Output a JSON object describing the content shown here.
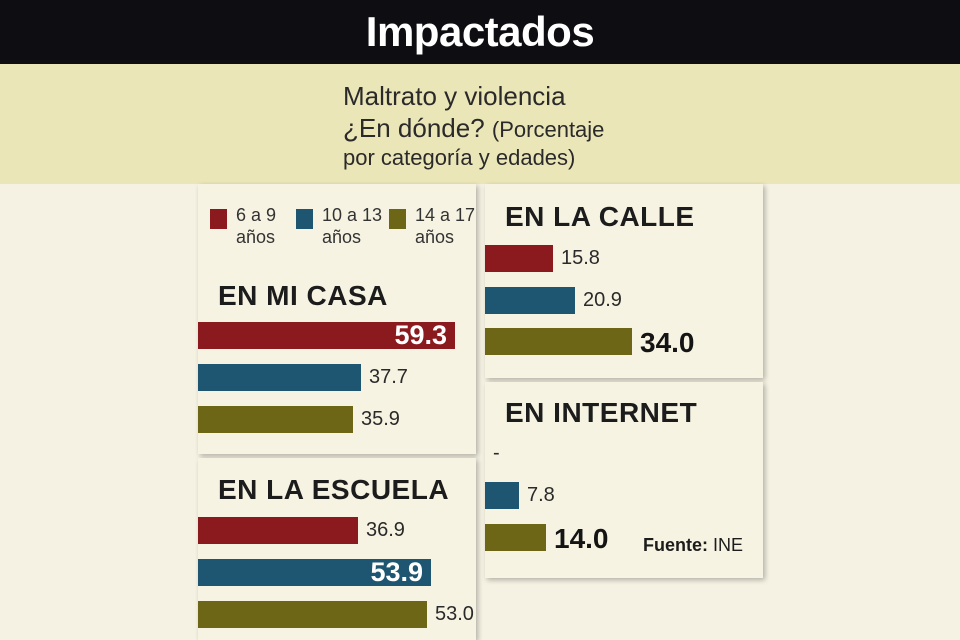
{
  "header": {
    "title": "Impactados"
  },
  "subtitle": {
    "line1": "Maltrato y violencia",
    "line2": "¿En dónde?",
    "line2b": "(Porcentaje",
    "line3": "por categoría y edades)"
  },
  "colors": {
    "age_6_9": "#8b1a1e",
    "age_10_13": "#1e5570",
    "age_14_17": "#6c6616"
  },
  "legend": {
    "items": [
      {
        "line1": "6 a 9",
        "line2": "años"
      },
      {
        "line1": "10 a 13",
        "line2": "años"
      },
      {
        "line1": "14 a 17",
        "line2": "años"
      }
    ]
  },
  "chart_data": {
    "type": "bar",
    "orientation": "horizontal",
    "title": "Impactados",
    "subtitle": "Maltrato y violencia ¿En dónde? (Porcentaje por categoría y edades)",
    "unit": "%",
    "series_names": [
      "6 a 9 años",
      "10 a 13 años",
      "14 a 17 años"
    ],
    "panels": [
      {
        "id": "casa",
        "title": "EN MI CASA",
        "values": [
          59.3,
          37.7,
          35.9
        ],
        "labels": [
          "59.3",
          "37.7",
          "35.9"
        ]
      },
      {
        "id": "escuela",
        "title": "EN LA ESCUELA",
        "values": [
          36.9,
          53.9,
          53.0
        ],
        "labels": [
          "36.9",
          "53.9",
          "53.0"
        ]
      },
      {
        "id": "calle",
        "title": "EN LA CALLE",
        "values": [
          15.8,
          20.9,
          34.0
        ],
        "labels": [
          "15.8",
          "20.9",
          "34.0"
        ]
      },
      {
        "id": "internet",
        "title": "EN INTERNET",
        "values": [
          null,
          7.8,
          14.0
        ],
        "labels": [
          "-",
          "7.8",
          "14.0"
        ]
      }
    ]
  },
  "source": {
    "label": "Fuente:",
    "value": "INE"
  }
}
